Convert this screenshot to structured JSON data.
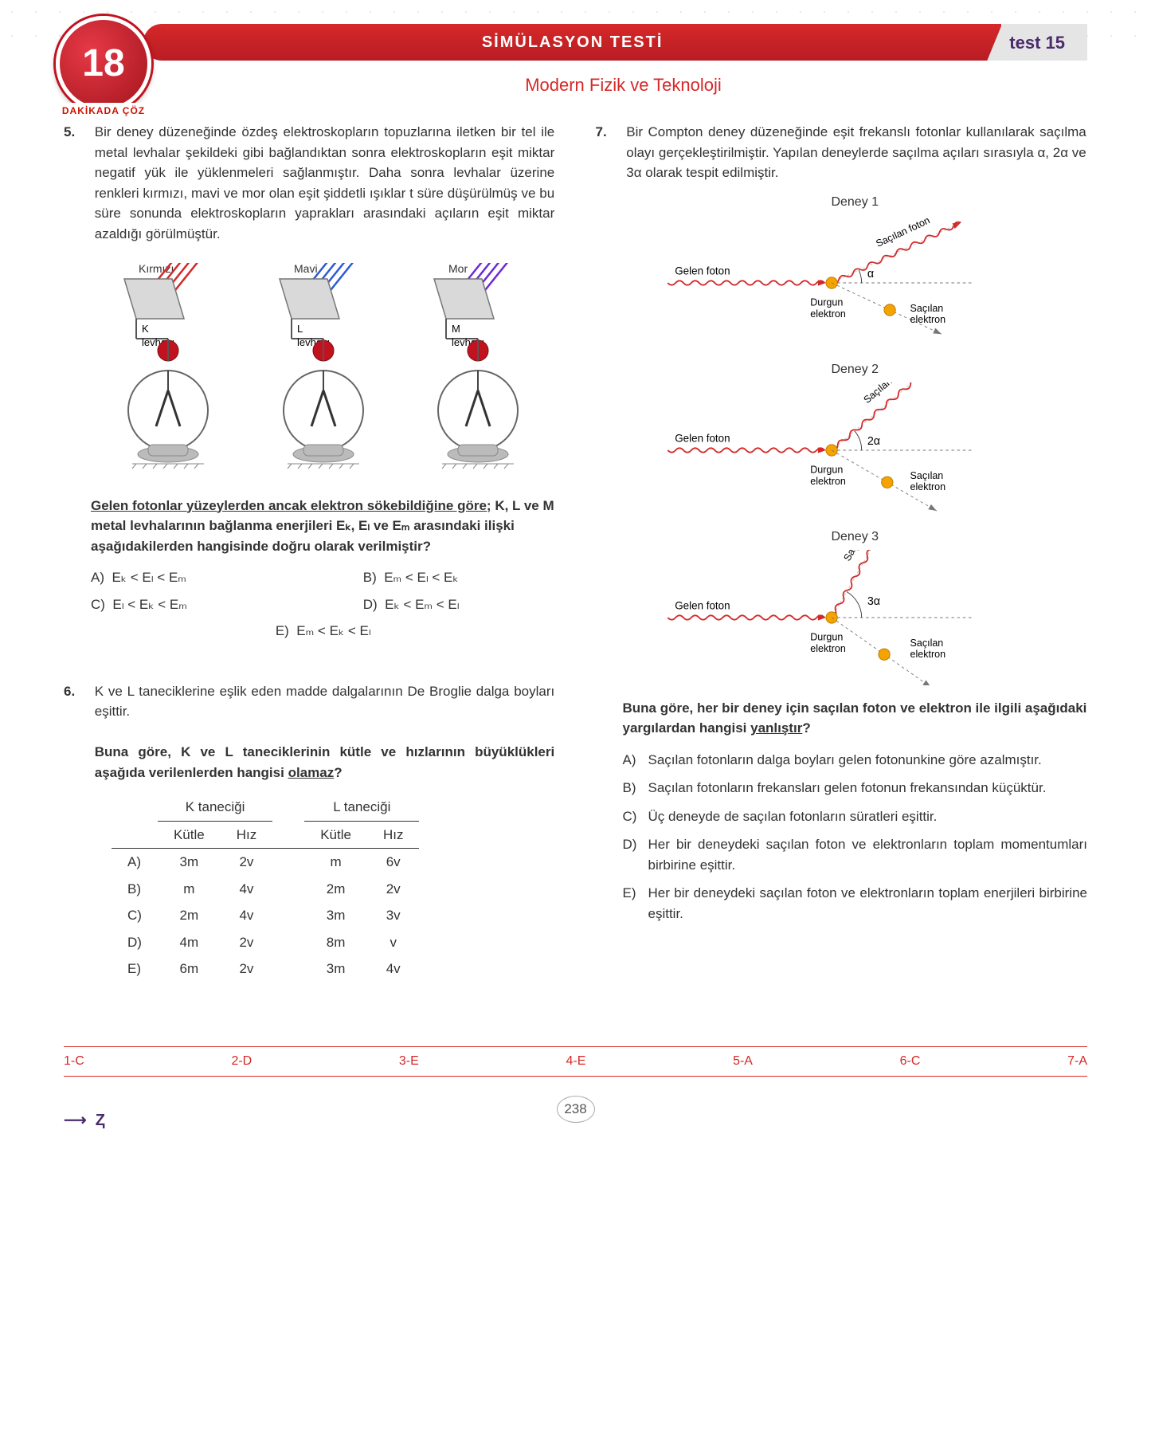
{
  "badge_number": "18",
  "badge_text": "DAKİKADA ÇÖZ",
  "header_title": "SİMÜLASYON TESTİ",
  "test_label": "test 15",
  "subtitle": "Modern Fizik ve Teknoloji",
  "colors": {
    "brand_red": "#d62828",
    "brand_dark_red": "#b81d24",
    "test_tag_bg": "#e5e5e5",
    "test_tag_text": "#4a2b6b"
  },
  "q5": {
    "num": "5.",
    "text": "Bir deney düzeneğinde özdeş elektroskopların topuzlarına iletken bir tel ile metal levhalar şekildeki gibi bağlandıktan sonra elektroskopların eşit miktar negatif yük ile yüklenmeleri sağlanmıştır. Daha sonra levhalar üzerine renkleri kırmızı, mavi ve mor olan eşit şiddetli ışıklar t süre düşürülmüş ve bu süre sonunda elektroskopların yaprakları arasındaki açıların eşit miktar azaldığı görülmüştür.",
    "escopes": [
      {
        "color_label": "Kırmızı",
        "plate_label_letter": "K",
        "plate_label_text": "levhası",
        "ray_color": "#d62828"
      },
      {
        "color_label": "Mavi",
        "plate_label_letter": "L",
        "plate_label_text": "levhası",
        "ray_color": "#2b5bd6"
      },
      {
        "color_label": "Mor",
        "plate_label_letter": "M",
        "plate_label_text": "levhası",
        "ray_color": "#6b2bd6"
      }
    ],
    "prompt_prefix": "Gelen fotonlar yüzeylerden ancak elektron sökebildiğine göre;",
    "prompt_rest": " K, L ve M metal levhalarının bağlanma enerjileri Eₖ, Eₗ ve Eₘ arasındaki ilişki aşağıdakilerden hangisinde doğru olarak verilmiştir?",
    "options": {
      "A": "Eₖ < Eₗ < Eₘ",
      "B": "Eₘ < Eₗ < Eₖ",
      "C": "Eₗ < Eₖ < Eₘ",
      "D": "Eₖ < Eₘ < Eₗ",
      "E": "Eₘ < Eₖ < Eₗ"
    }
  },
  "q6": {
    "num": "6.",
    "text": "K ve L taneciklerine eşlik eden madde dalgalarının De Broglie dalga boyları eşittir.",
    "prompt": "Buna göre, K ve L taneciklerinin kütle ve hızlarının büyüklükleri aşağıda verilenlerden hangisi ",
    "prompt_underline": "olamaz",
    "prompt_after": "?",
    "table": {
      "groups": [
        "K taneciği",
        "L taneciği"
      ],
      "cols": [
        "Kütle",
        "Hız",
        "Kütle",
        "Hız"
      ],
      "rows": [
        {
          "label": "A)",
          "cells": [
            "3m",
            "2v",
            "m",
            "6v"
          ]
        },
        {
          "label": "B)",
          "cells": [
            "m",
            "4v",
            "2m",
            "2v"
          ]
        },
        {
          "label": "C)",
          "cells": [
            "2m",
            "4v",
            "3m",
            "3v"
          ]
        },
        {
          "label": "D)",
          "cells": [
            "4m",
            "2v",
            "8m",
            "v"
          ]
        },
        {
          "label": "E)",
          "cells": [
            "6m",
            "2v",
            "3m",
            "4v"
          ]
        }
      ]
    }
  },
  "q7": {
    "num": "7.",
    "text": "Bir Compton deney düzeneğinde eşit frekanslı fotonlar kullanılarak saçılma olayı gerçekleştirilmiştir. Yapılan deneylerde saçılma açıları sırasıyla α, 2α ve 3α olarak tespit edilmiştir.",
    "diagrams": [
      {
        "title": "Deney 1",
        "angle": "α",
        "photon_angle_deg": 25,
        "electron_angle_deg": -25
      },
      {
        "title": "Deney 2",
        "angle": "2α",
        "photon_angle_deg": 40,
        "electron_angle_deg": -30
      },
      {
        "title": "Deney 3",
        "angle": "3α",
        "photon_angle_deg": 60,
        "electron_angle_deg": -35
      }
    ],
    "labels": {
      "incoming": "Gelen foton",
      "scattered_photon": "Saçılan foton",
      "stationary_e": "Durgun elektron",
      "scattered_e": "Saçılan elektron"
    },
    "prompt_prefix": "Buna göre, her bir deney için saçılan foton ve elektron ile ilgili aşağıdaki yargılardan hangisi ",
    "prompt_underline": "yanlıştır",
    "prompt_after": "?",
    "options": {
      "A": "Saçılan fotonların dalga boyları gelen fotonunkine göre azalmıştır.",
      "B": "Saçılan fotonların frekansları gelen fotonun frekansından küçüktür.",
      "C": "Üç deneyde de saçılan fotonların süratleri eşittir.",
      "D": "Her bir deneydeki saçılan foton ve elektronların toplam momentumları birbirine eşittir.",
      "E": "Her bir deneydeki saçılan foton ve elektronların toplam enerjileri birbirine eşittir."
    }
  },
  "answer_key": [
    "1-C",
    "2-D",
    "3-E",
    "4-E",
    "5-A",
    "6-C",
    "7-A"
  ],
  "page_number": "238"
}
